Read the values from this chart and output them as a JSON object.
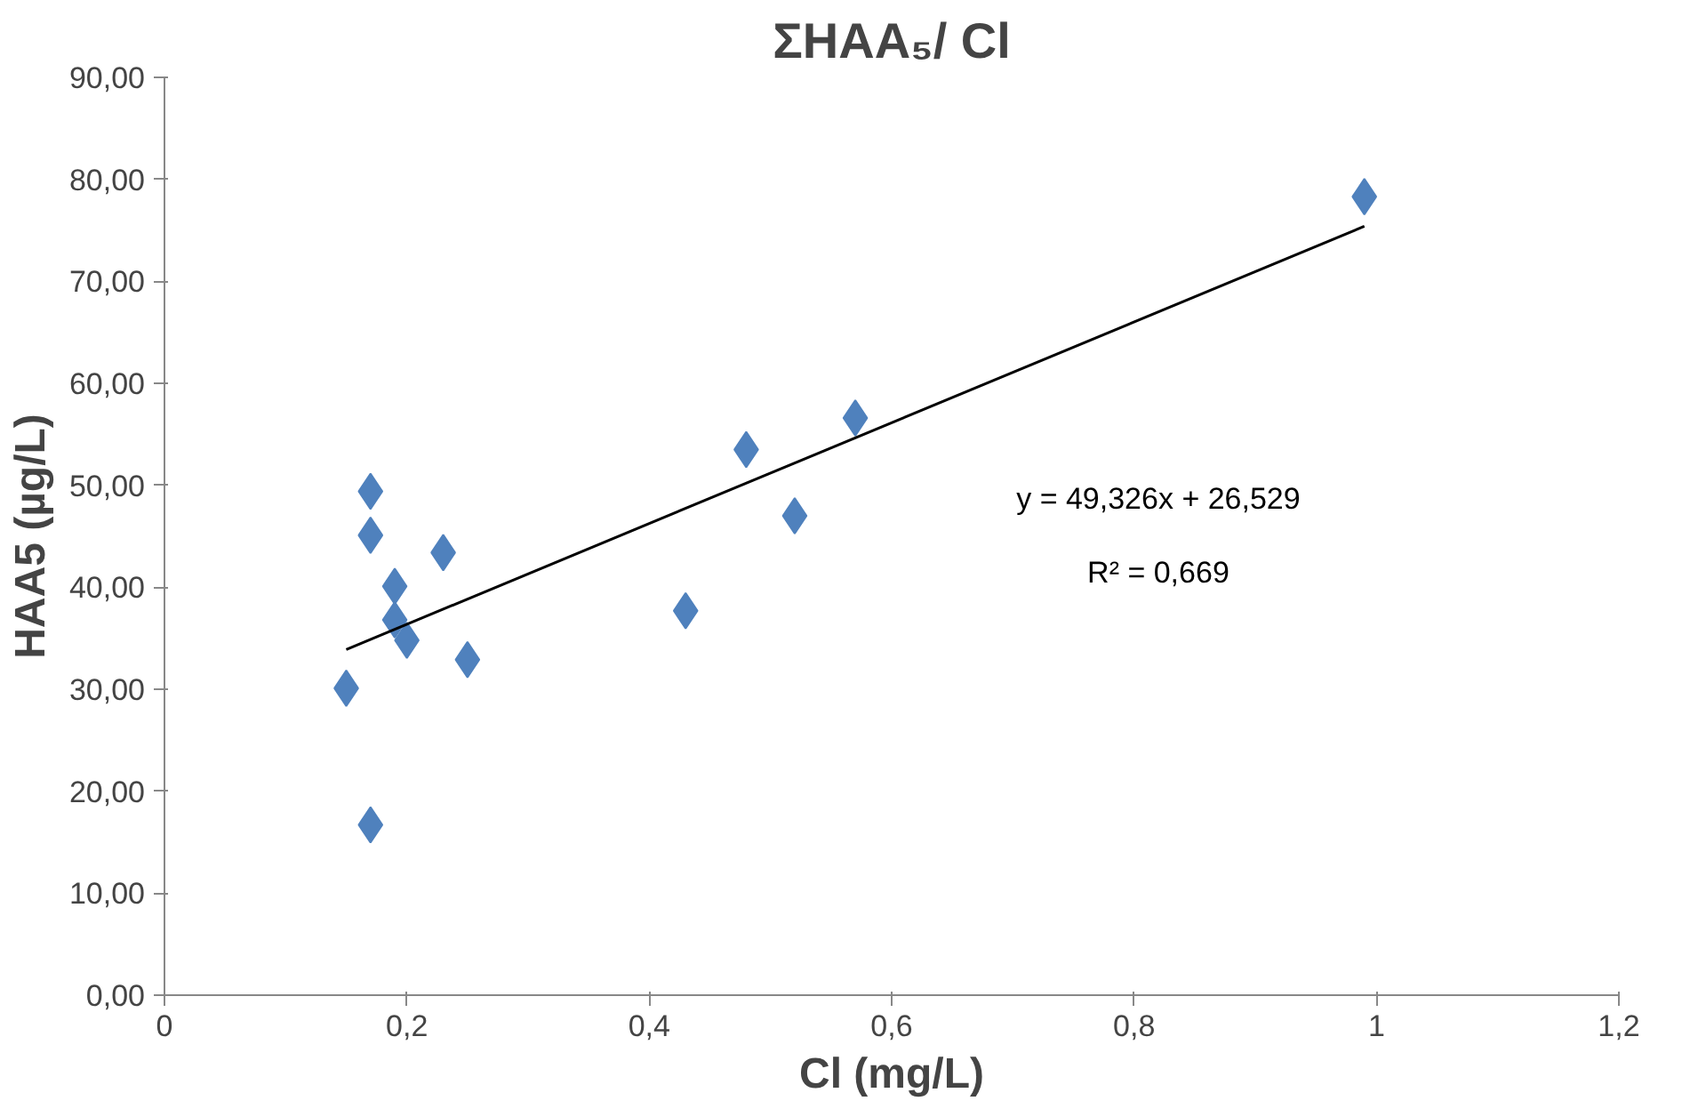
{
  "chart_data": {
    "type": "scatter",
    "title": "ΣHAA₅/ Cl",
    "xlabel": "Cl (mg/L)",
    "ylabel": "HAA5 (µg/L)",
    "xlim": [
      0,
      1.2
    ],
    "ylim": [
      0,
      90
    ],
    "xticks": [
      0,
      {
        "value": 0.2,
        "label": "0,2"
      },
      {
        "value": 0.4,
        "label": "0,4"
      },
      {
        "value": 0.6,
        "label": "0,6"
      },
      {
        "value": 0.8,
        "label": "0,8"
      },
      1,
      {
        "value": 1.2,
        "label": "1,2"
      }
    ],
    "yticks": [
      {
        "value": 0,
        "label": "0,00"
      },
      {
        "value": 10,
        "label": "10,00"
      },
      {
        "value": 20,
        "label": "20,00"
      },
      {
        "value": 30,
        "label": "30,00"
      },
      {
        "value": 40,
        "label": "40,00"
      },
      {
        "value": 50,
        "label": "50,00"
      },
      {
        "value": 60,
        "label": "60,00"
      },
      {
        "value": 70,
        "label": "70,00"
      },
      {
        "value": 80,
        "label": "80,00"
      },
      {
        "value": 90,
        "label": "90,00"
      }
    ],
    "grid": false,
    "marker": "diamond",
    "series": [
      {
        "color": "#4f81bd",
        "x": [
          0.17,
          0.17,
          0.23,
          0.19,
          0.19,
          0.2,
          0.25,
          0.15,
          0.17,
          0.43,
          0.48,
          0.52,
          0.57,
          0.99
        ],
        "values": [
          49.4,
          45.1,
          43.4,
          40.1,
          36.8,
          34.8,
          32.9,
          30.1,
          16.7,
          37.7,
          53.5,
          47.0,
          56.6,
          78.3
        ]
      },
      {
        "type": "line",
        "marker": "none",
        "color": "#000000",
        "x": [
          0.15,
          0.99
        ],
        "values": [
          33.9,
          75.4
        ]
      }
    ],
    "annotations": [
      "y = 49,326x + 26,529",
      "R² = 0,669"
    ]
  }
}
